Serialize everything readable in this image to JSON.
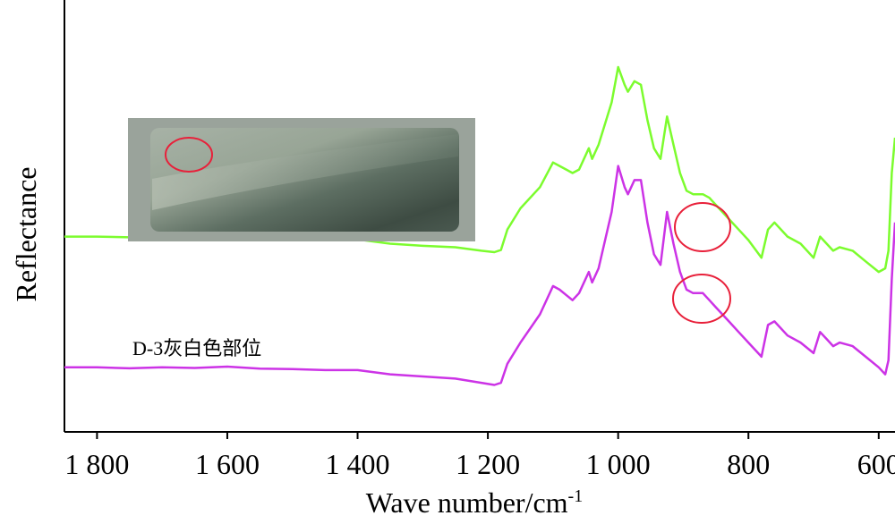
{
  "chart_data": {
    "type": "line",
    "title": "",
    "xlabel": "Wave number/cm",
    "xlabel_superscript": "-1",
    "ylabel": "Reflectance",
    "xlim": [
      1850,
      575
    ],
    "x_reversed": true,
    "y_ticks_shown": false,
    "grid": false,
    "x_ticks": [
      1800,
      1600,
      1400,
      1200,
      1000,
      800,
      600
    ],
    "x_tick_labels": [
      "1 800",
      "1 600",
      "1 400",
      "1 200",
      "1 000",
      "800",
      "600"
    ],
    "annotation": "D-3灰白色部位",
    "inset": "sample photo with red circle marking measured area",
    "colors": {
      "upper": "#7CFC2E",
      "lower": "#CC33E6",
      "circles": "#E8203A"
    },
    "series": [
      {
        "color": "#7CFC2E",
        "x": [
          1850,
          1800,
          1750,
          1700,
          1650,
          1600,
          1550,
          1500,
          1450,
          1400,
          1350,
          1300,
          1250,
          1210,
          1190,
          1180,
          1170,
          1150,
          1120,
          1100,
          1090,
          1070,
          1060,
          1045,
          1040,
          1030,
          1020,
          1010,
          1000,
          990,
          985,
          975,
          965,
          955,
          945,
          935,
          925,
          915,
          905,
          895,
          885,
          870,
          860,
          850,
          830,
          815,
          800,
          780,
          770,
          760,
          740,
          720,
          700,
          690,
          680,
          670,
          660,
          640,
          620,
          600,
          590,
          585,
          580,
          575
        ],
        "y": [
          0.52,
          0.52,
          0.518,
          0.522,
          0.518,
          0.522,
          0.515,
          0.515,
          0.512,
          0.512,
          0.5,
          0.494,
          0.49,
          0.48,
          0.476,
          0.482,
          0.54,
          0.6,
          0.66,
          0.73,
          0.72,
          0.7,
          0.71,
          0.77,
          0.74,
          0.78,
          0.84,
          0.9,
          1.0,
          0.95,
          0.93,
          0.96,
          0.95,
          0.85,
          0.77,
          0.74,
          0.86,
          0.78,
          0.7,
          0.65,
          0.64,
          0.64,
          0.63,
          0.61,
          0.57,
          0.54,
          0.51,
          0.46,
          0.54,
          0.56,
          0.52,
          0.5,
          0.46,
          0.52,
          0.5,
          0.48,
          0.49,
          0.48,
          0.45,
          0.42,
          0.43,
          0.48,
          0.7,
          0.8
        ]
      },
      {
        "color": "#CC33E6",
        "x": [
          1850,
          1800,
          1750,
          1700,
          1650,
          1600,
          1550,
          1500,
          1450,
          1400,
          1350,
          1300,
          1250,
          1210,
          1190,
          1180,
          1170,
          1150,
          1120,
          1100,
          1090,
          1070,
          1060,
          1045,
          1040,
          1030,
          1020,
          1010,
          1000,
          990,
          985,
          975,
          965,
          955,
          945,
          935,
          925,
          915,
          905,
          895,
          885,
          870,
          860,
          850,
          830,
          815,
          800,
          780,
          770,
          760,
          740,
          720,
          700,
          690,
          680,
          670,
          660,
          640,
          620,
          600,
          590,
          585,
          580,
          575
        ],
        "y": [
          0.15,
          0.15,
          0.147,
          0.15,
          0.148,
          0.152,
          0.146,
          0.145,
          0.142,
          0.142,
          0.13,
          0.124,
          0.118,
          0.106,
          0.1,
          0.106,
          0.16,
          0.22,
          0.3,
          0.38,
          0.37,
          0.34,
          0.36,
          0.42,
          0.39,
          0.43,
          0.51,
          0.59,
          0.72,
          0.66,
          0.64,
          0.68,
          0.68,
          0.56,
          0.47,
          0.44,
          0.59,
          0.5,
          0.42,
          0.37,
          0.36,
          0.36,
          0.34,
          0.32,
          0.28,
          0.25,
          0.22,
          0.18,
          0.27,
          0.28,
          0.24,
          0.22,
          0.19,
          0.25,
          0.23,
          0.21,
          0.22,
          0.21,
          0.18,
          0.15,
          0.13,
          0.17,
          0.4,
          0.56
        ]
      }
    ]
  }
}
